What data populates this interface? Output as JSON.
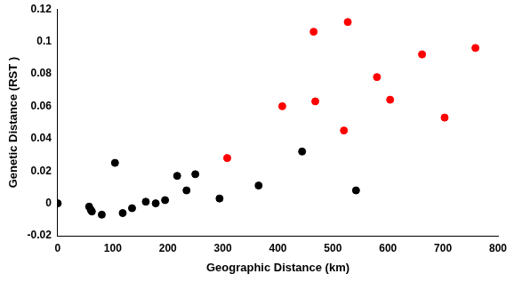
{
  "chart_data": {
    "type": "scatter",
    "x_label": "Geographic Distance (km)",
    "y_label": "Genetic Distance (RST )",
    "series": [
      {
        "color": "#000000",
        "x": [
          0,
          57,
          60,
          62,
          80,
          104,
          118,
          135,
          160,
          178,
          195,
          217,
          234,
          250,
          294,
          365,
          444,
          542
        ],
        "values": [
          0,
          -0.002,
          -0.004,
          -0.005,
          -0.007,
          0.025,
          -0.006,
          -0.003,
          0.001,
          0,
          0.002,
          0.017,
          0.008,
          0.018,
          0.003,
          0.011,
          0.032,
          0.008
        ]
      },
      {
        "color": "#ff0000",
        "x": [
          308,
          408,
          465,
          468,
          520,
          527,
          580,
          604,
          662,
          703,
          759
        ],
        "values": [
          0.028,
          0.06,
          0.106,
          0.063,
          0.045,
          0.112,
          0.078,
          0.064,
          0.092,
          0.053,
          0.096
        ]
      }
    ],
    "xlim": [
      0,
      800
    ],
    "xticks": [
      0,
      100,
      200,
      300,
      400,
      500,
      600,
      700,
      800
    ],
    "ylim": [
      -0.02,
      0.12
    ],
    "yticks": [
      -0.02,
      0,
      0.02,
      0.04,
      0.06,
      0.08,
      0.1,
      0.12
    ],
    "marker": "circle",
    "grid": false
  }
}
